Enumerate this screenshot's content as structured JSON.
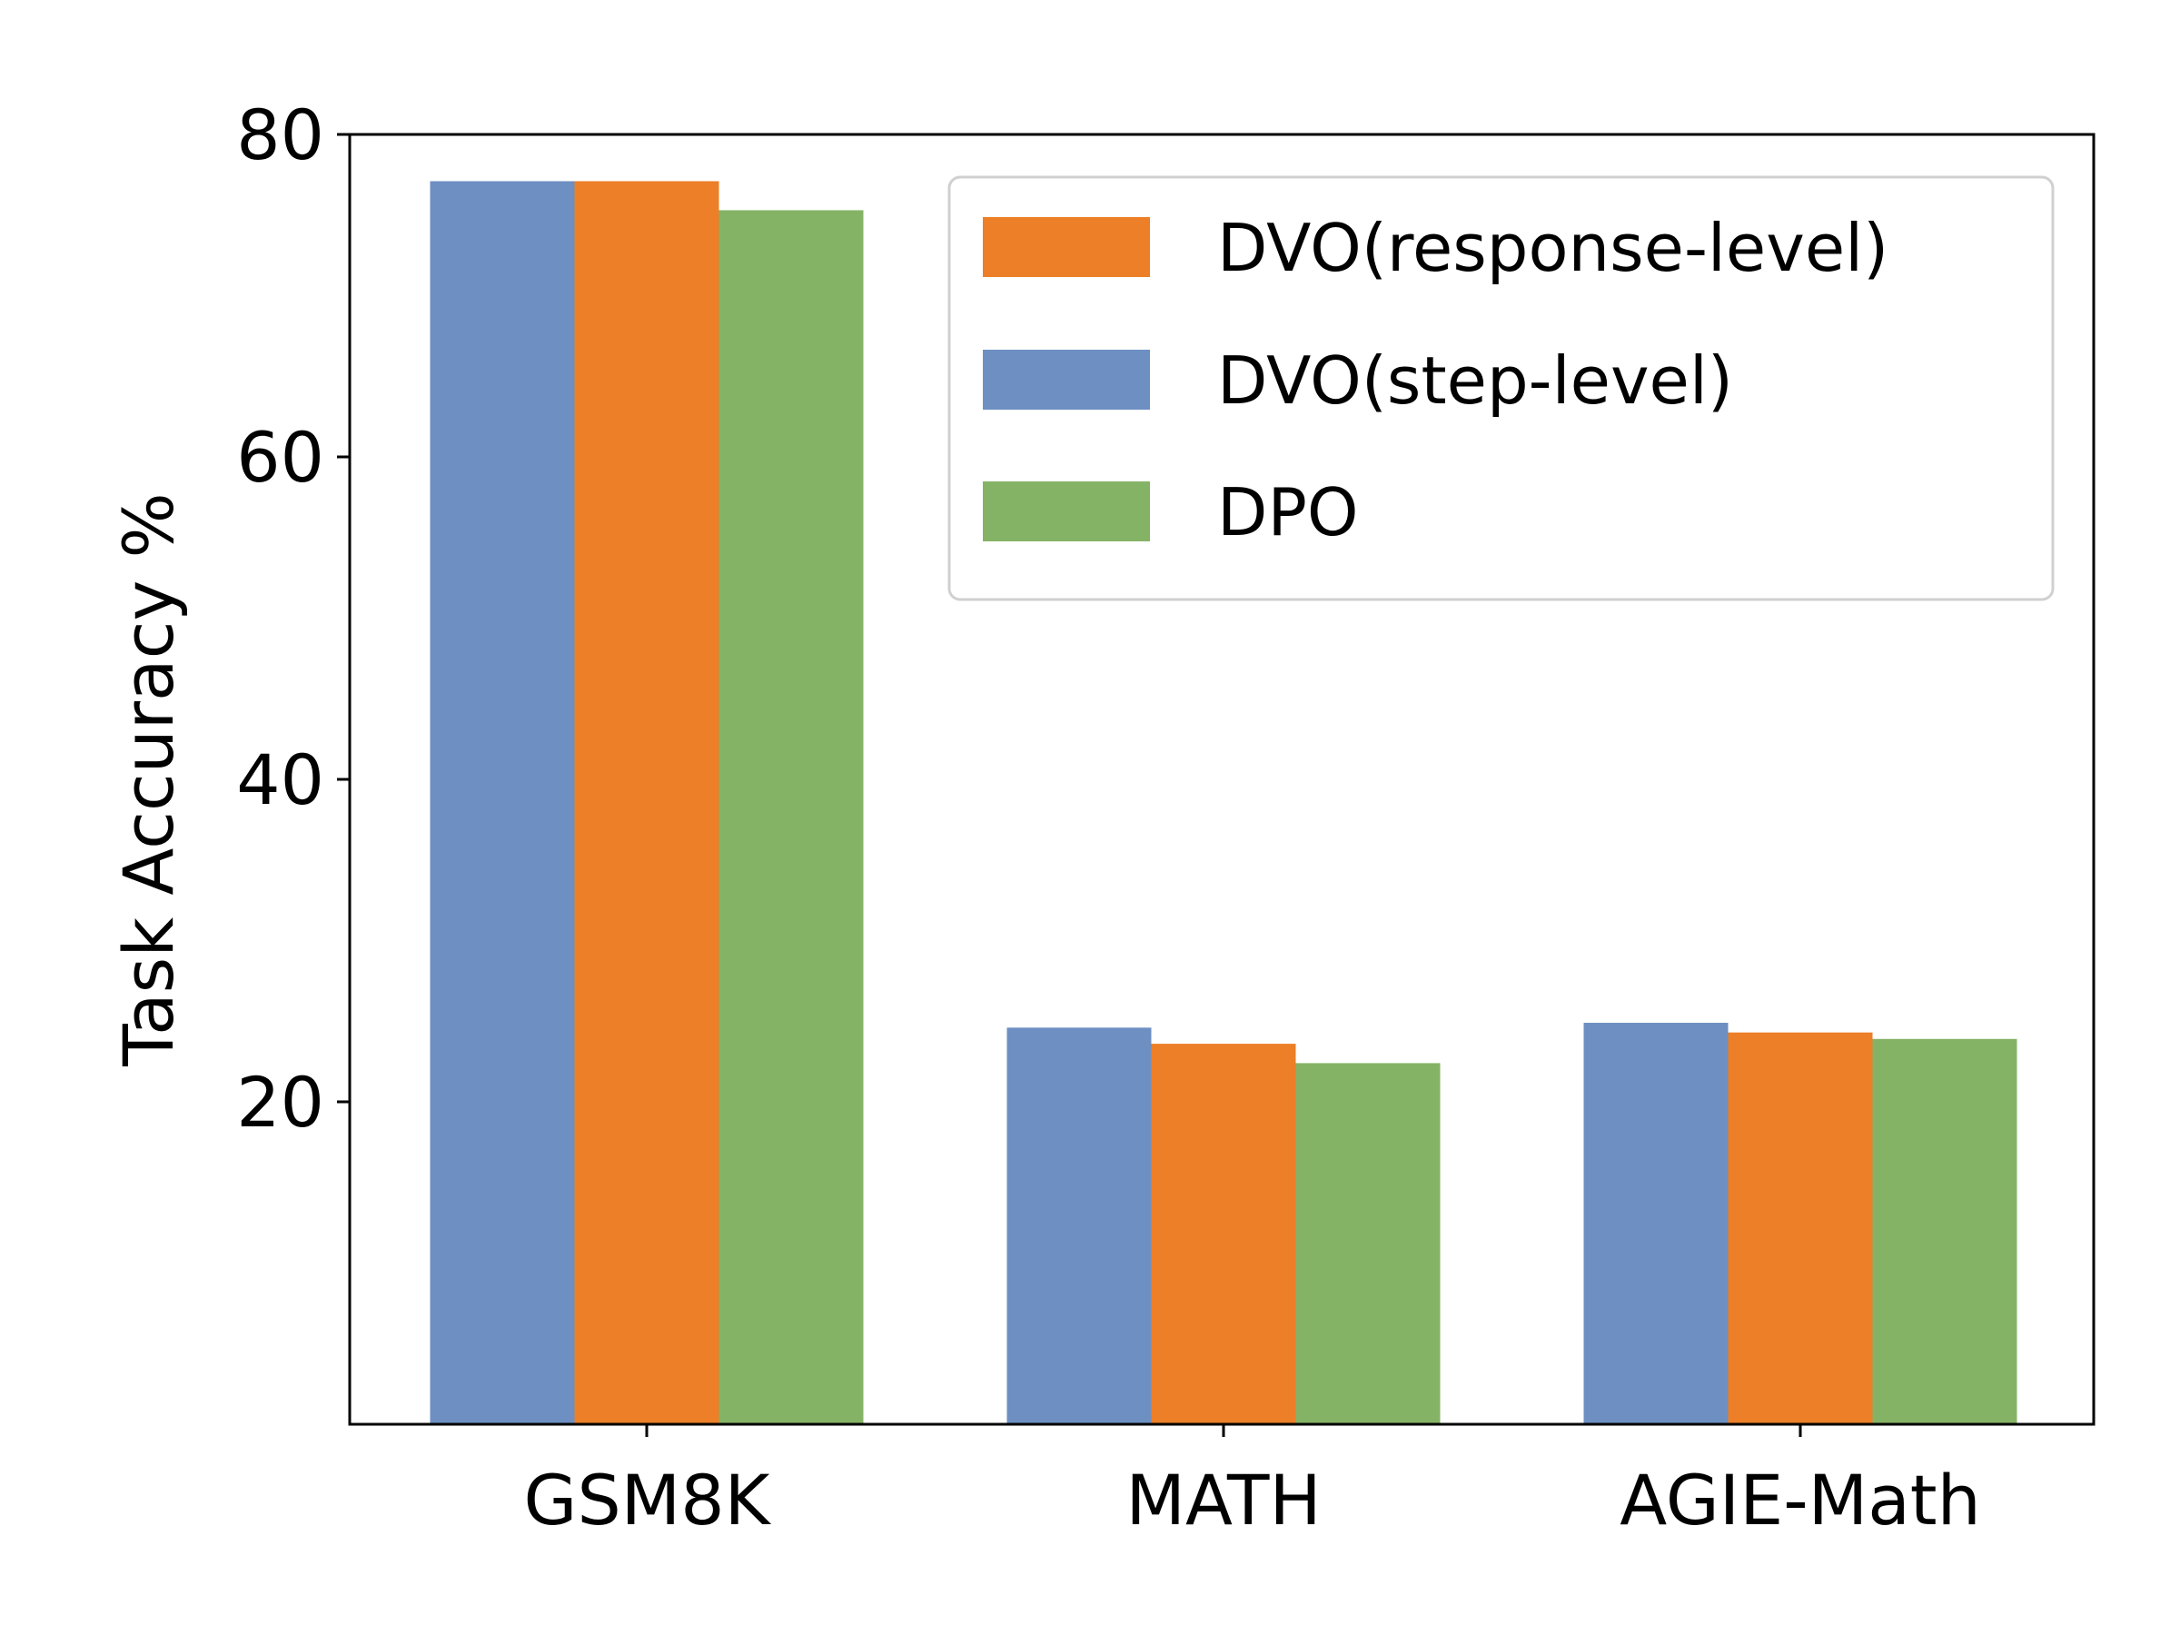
{
  "chart_data": {
    "type": "bar",
    "title": "",
    "xlabel": "",
    "ylabel": "Task Accuracy %",
    "categories": [
      "GSM8K",
      "MATH",
      "AGIE-Math"
    ],
    "series": [
      {
        "name": "DVO(step-level)",
        "color": "#6d8fc2",
        "values": [
          77.1,
          24.6,
          24.9
        ]
      },
      {
        "name": "DVO(response-level)",
        "color": "#ec7f27",
        "values": [
          77.1,
          23.6,
          24.3
        ]
      },
      {
        "name": "DPO",
        "color": "#85b366",
        "values": [
          75.3,
          22.4,
          23.9
        ]
      }
    ],
    "legend_order": [
      "DVO(response-level)",
      "DVO(step-level)",
      "DPO"
    ],
    "legend_position": "top-right",
    "ylim": [
      0,
      80
    ],
    "yticks": [
      20,
      40,
      60,
      80
    ],
    "grid": false
  }
}
